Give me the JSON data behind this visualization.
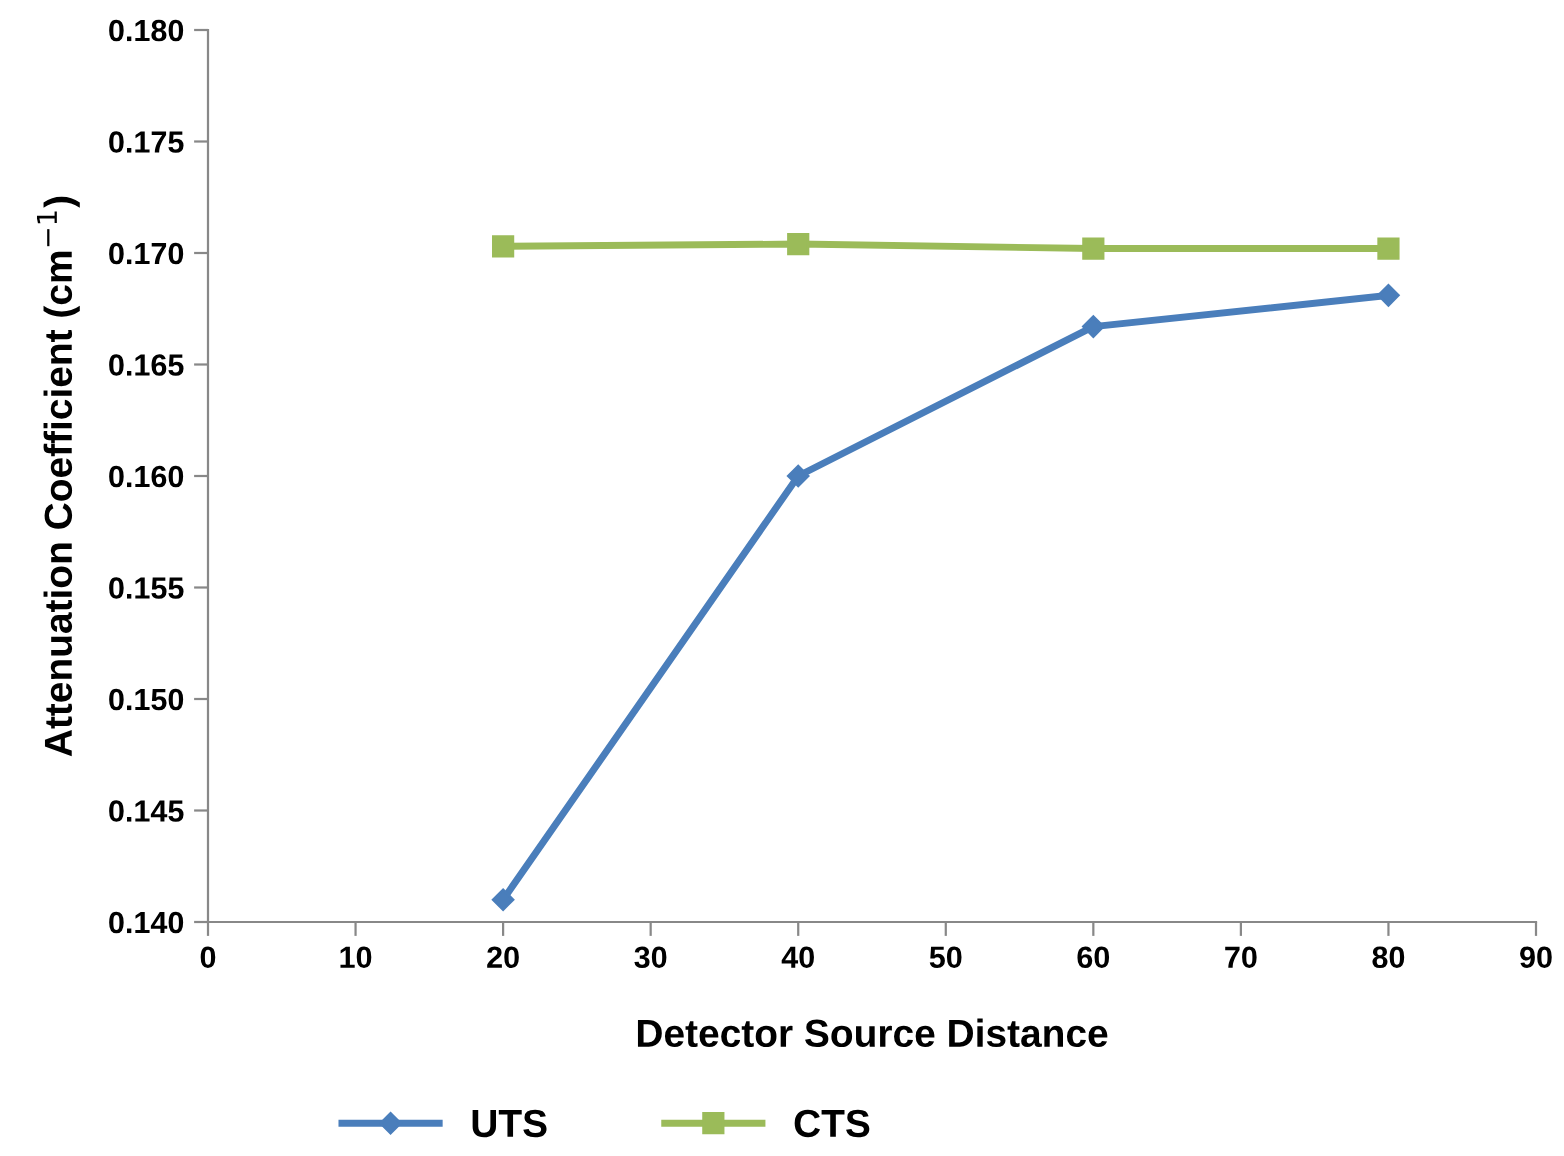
{
  "chart_data": {
    "type": "line",
    "xlabel": "Detector Source Distance",
    "ylabel": "Attenuation Coefficient (cm$^{−1}$)",
    "x": [
      20,
      40,
      60,
      80
    ],
    "series": [
      {
        "name": "UTS",
        "color": "#4a7ebb",
        "marker": "diamond",
        "values": [
          0.141,
          0.16,
          0.1667,
          0.1681
        ]
      },
      {
        "name": "CTS",
        "color": "#9bbb59",
        "marker": "square",
        "values": [
          0.1703,
          0.1704,
          0.1702,
          0.1702
        ]
      }
    ],
    "xlim": [
      0,
      90
    ],
    "xticks": [
      0,
      10,
      20,
      30,
      40,
      50,
      60,
      70,
      80,
      90
    ],
    "ylim": [
      0.14,
      0.18
    ],
    "yticks": [
      {
        "value": 0.14,
        "label": "0.140"
      },
      {
        "value": 0.145,
        "label": "0.145"
      },
      {
        "value": 0.15,
        "label": "0.150"
      },
      {
        "value": 0.155,
        "label": "0.155"
      },
      {
        "value": 0.16,
        "label": "0.160"
      },
      {
        "value": 0.165,
        "label": "0.165"
      },
      {
        "value": 0.17,
        "label": "0.170"
      },
      {
        "value": 0.175,
        "label": "0.175"
      },
      {
        "value": 0.18,
        "label": "0.180"
      }
    ],
    "grid": false,
    "legend": "bottom",
    "line_style": "solid"
  }
}
